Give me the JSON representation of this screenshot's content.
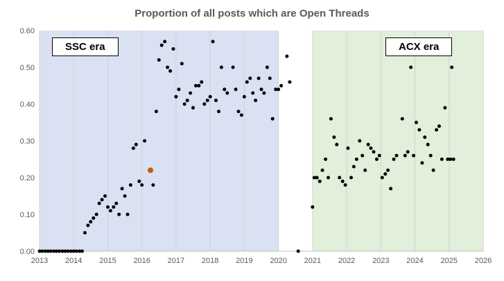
{
  "chart_data": {
    "type": "scatter",
    "title": "Proportion of all posts which are Open Threads",
    "xlabel": "",
    "ylabel": "",
    "xlim": [
      2013,
      2026
    ],
    "ylim": [
      0.0,
      0.6
    ],
    "x_ticks": [
      2013,
      2014,
      2015,
      2016,
      2017,
      2018,
      2019,
      2020,
      2021,
      2022,
      2023,
      2024,
      2025,
      2026
    ],
    "y_ticks": [
      0.0,
      0.1,
      0.2,
      0.3,
      0.4,
      0.5,
      0.6
    ],
    "grid": "vertical-yearly",
    "legend": "none",
    "colors": {
      "grid": "#d2d2d2",
      "axis": "#bfbfbf",
      "title": "#595959",
      "tick_label": "#595959"
    },
    "regions": [
      {
        "label": "SSC era",
        "x0": 2013,
        "x1": 2020,
        "color": "#d9e1f2"
      },
      {
        "label": "ACX era",
        "x0": 2021,
        "x1": 2026,
        "color": "#e2efda"
      }
    ],
    "series": [
      {
        "name": "open-thread-proportion",
        "color": "#000000",
        "radius": 2.5,
        "points": [
          [
            2013.0,
            0
          ],
          [
            2013.08,
            0
          ],
          [
            2013.17,
            0
          ],
          [
            2013.25,
            0
          ],
          [
            2013.33,
            0
          ],
          [
            2013.42,
            0
          ],
          [
            2013.5,
            0
          ],
          [
            2013.58,
            0
          ],
          [
            2013.67,
            0
          ],
          [
            2013.75,
            0
          ],
          [
            2013.83,
            0
          ],
          [
            2013.92,
            0
          ],
          [
            2014.0,
            0
          ],
          [
            2014.08,
            0
          ],
          [
            2014.17,
            0
          ],
          [
            2014.25,
            0
          ],
          [
            2014.33,
            0.05
          ],
          [
            2014.42,
            0.07
          ],
          [
            2014.5,
            0.08
          ],
          [
            2014.58,
            0.09
          ],
          [
            2014.67,
            0.1
          ],
          [
            2014.75,
            0.13
          ],
          [
            2014.83,
            0.14
          ],
          [
            2014.92,
            0.15
          ],
          [
            2015.0,
            0.12
          ],
          [
            2015.08,
            0.11
          ],
          [
            2015.17,
            0.12
          ],
          [
            2015.25,
            0.13
          ],
          [
            2015.33,
            0.1
          ],
          [
            2015.42,
            0.17
          ],
          [
            2015.5,
            0.15
          ],
          [
            2015.58,
            0.1
          ],
          [
            2015.67,
            0.18
          ],
          [
            2015.75,
            0.28
          ],
          [
            2015.83,
            0.29
          ],
          [
            2015.92,
            0.19
          ],
          [
            2016.0,
            0.18
          ],
          [
            2016.08,
            0.3
          ],
          [
            2016.33,
            0.18
          ],
          [
            2016.42,
            0.38
          ],
          [
            2016.5,
            0.52
          ],
          [
            2016.58,
            0.56
          ],
          [
            2016.67,
            0.57
          ],
          [
            2016.75,
            0.5
          ],
          [
            2016.83,
            0.49
          ],
          [
            2016.92,
            0.55
          ],
          [
            2017.0,
            0.42
          ],
          [
            2017.08,
            0.44
          ],
          [
            2017.17,
            0.51
          ],
          [
            2017.25,
            0.4
          ],
          [
            2017.33,
            0.41
          ],
          [
            2017.42,
            0.43
          ],
          [
            2017.5,
            0.39
          ],
          [
            2017.58,
            0.45
          ],
          [
            2017.67,
            0.45
          ],
          [
            2017.75,
            0.46
          ],
          [
            2017.83,
            0.4
          ],
          [
            2017.92,
            0.41
          ],
          [
            2018.0,
            0.42
          ],
          [
            2018.08,
            0.57
          ],
          [
            2018.17,
            0.41
          ],
          [
            2018.25,
            0.38
          ],
          [
            2018.33,
            0.5
          ],
          [
            2018.42,
            0.44
          ],
          [
            2018.5,
            0.43
          ],
          [
            2018.67,
            0.5
          ],
          [
            2018.75,
            0.44
          ],
          [
            2018.83,
            0.38
          ],
          [
            2018.92,
            0.37
          ],
          [
            2019.0,
            0.42
          ],
          [
            2019.08,
            0.46
          ],
          [
            2019.17,
            0.47
          ],
          [
            2019.25,
            0.43
          ],
          [
            2019.33,
            0.41
          ],
          [
            2019.42,
            0.47
          ],
          [
            2019.5,
            0.44
          ],
          [
            2019.58,
            0.43
          ],
          [
            2019.67,
            0.5
          ],
          [
            2019.75,
            0.47
          ],
          [
            2019.83,
            0.36
          ],
          [
            2019.92,
            0.44
          ],
          [
            2020.0,
            0.44
          ],
          [
            2020.08,
            0.45
          ],
          [
            2020.25,
            0.53
          ],
          [
            2020.33,
            0.46
          ],
          [
            2020.58,
            0.0
          ],
          [
            2021.0,
            0.12
          ],
          [
            2021.05,
            0.2
          ],
          [
            2021.13,
            0.2
          ],
          [
            2021.21,
            0.19
          ],
          [
            2021.29,
            0.22
          ],
          [
            2021.38,
            0.25
          ],
          [
            2021.46,
            0.2
          ],
          [
            2021.54,
            0.36
          ],
          [
            2021.63,
            0.31
          ],
          [
            2021.71,
            0.29
          ],
          [
            2021.79,
            0.2
          ],
          [
            2021.88,
            0.19
          ],
          [
            2021.96,
            0.18
          ],
          [
            2022.04,
            0.28
          ],
          [
            2022.13,
            0.2
          ],
          [
            2022.21,
            0.23
          ],
          [
            2022.29,
            0.25
          ],
          [
            2022.38,
            0.3
          ],
          [
            2022.46,
            0.26
          ],
          [
            2022.54,
            0.22
          ],
          [
            2022.63,
            0.29
          ],
          [
            2022.71,
            0.28
          ],
          [
            2022.79,
            0.27
          ],
          [
            2022.88,
            0.25
          ],
          [
            2022.96,
            0.26
          ],
          [
            2023.04,
            0.2
          ],
          [
            2023.13,
            0.21
          ],
          [
            2023.21,
            0.22
          ],
          [
            2023.29,
            0.17
          ],
          [
            2023.38,
            0.25
          ],
          [
            2023.46,
            0.26
          ],
          [
            2023.63,
            0.36
          ],
          [
            2023.71,
            0.26
          ],
          [
            2023.79,
            0.27
          ],
          [
            2023.88,
            0.5
          ],
          [
            2023.96,
            0.26
          ],
          [
            2024.04,
            0.35
          ],
          [
            2024.13,
            0.33
          ],
          [
            2024.21,
            0.24
          ],
          [
            2024.29,
            0.31
          ],
          [
            2024.38,
            0.29
          ],
          [
            2024.46,
            0.26
          ],
          [
            2024.54,
            0.22
          ],
          [
            2024.63,
            0.33
          ],
          [
            2024.71,
            0.34
          ],
          [
            2024.79,
            0.25
          ],
          [
            2024.88,
            0.39
          ],
          [
            2024.96,
            0.25
          ],
          [
            2025.04,
            0.25
          ],
          [
            2025.08,
            0.5
          ],
          [
            2025.13,
            0.25
          ]
        ]
      },
      {
        "name": "highlighted",
        "color": "#C55A11",
        "radius": 4,
        "points": [
          [
            2016.25,
            0.22
          ]
        ]
      }
    ]
  }
}
